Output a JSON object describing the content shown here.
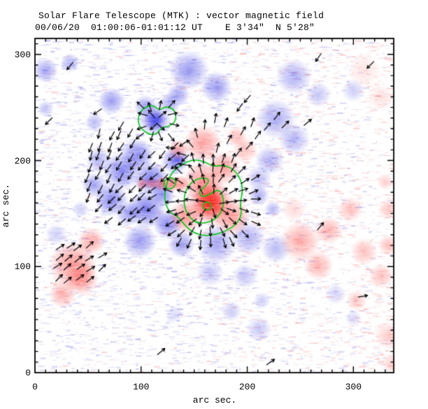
{
  "chart_data": {
    "type": "heatmap",
    "title": "Solar Flare Telescope (MTK) : vector magnetic field",
    "subtitle": "00/06/20  01:00:06-01:01:12 UT    E 3'34\"  N 5'28\"",
    "xlabel": "arc sec.",
    "ylabel": "arc sec.",
    "xlim": [
      0,
      338
    ],
    "ylim": [
      0,
      315
    ],
    "x_major_ticks": [
      0,
      100,
      200,
      300
    ],
    "y_major_ticks": [
      0,
      100,
      200,
      300
    ],
    "minor_tick_step": 10,
    "grid": false,
    "legend": "none",
    "colors": {
      "positive_flux": "#fa2d26",
      "negative_flux": "#3737e4",
      "contour": "#00c814",
      "noise_pink": "#f67878",
      "noise_blue": "#6e6ee4",
      "axis": "#000000",
      "background": "#ffffff"
    },
    "blobs": [
      [
        10,
        285,
        12,
        "n",
        0.45
      ],
      [
        33,
        292,
        9,
        "n",
        0.4
      ],
      [
        72,
        256,
        13,
        "n",
        0.5
      ],
      [
        56,
        236,
        9,
        "n",
        0.35
      ],
      [
        10,
        249,
        8,
        "n",
        0.3
      ],
      [
        145,
        285,
        19,
        "n",
        0.5
      ],
      [
        171,
        269,
        15,
        "n",
        0.5
      ],
      [
        135,
        262,
        11,
        "n",
        0.45
      ],
      [
        244,
        279,
        17,
        "n",
        0.4
      ],
      [
        267,
        262,
        12,
        "n",
        0.3
      ],
      [
        300,
        266,
        11,
        "n",
        0.25
      ],
      [
        227,
        239,
        19,
        "n",
        0.42
      ],
      [
        244,
        220,
        15,
        "n",
        0.38
      ],
      [
        221,
        200,
        14,
        "n",
        0.38
      ],
      [
        211,
        183,
        12,
        "n",
        0.33
      ],
      [
        113,
        238,
        10,
        "n",
        0.85
      ],
      [
        113,
        238,
        16,
        "n",
        0.5
      ],
      [
        104,
        251,
        11,
        "n",
        0.45
      ],
      [
        127,
        254,
        10,
        "n",
        0.45
      ],
      [
        82,
        190,
        18,
        "n",
        0.6
      ],
      [
        109,
        183,
        16,
        "n",
        0.65
      ],
      [
        72,
        163,
        16,
        "n",
        0.6
      ],
      [
        105,
        154,
        18,
        "n",
        0.65
      ],
      [
        132,
        200,
        13,
        "n",
        0.55
      ],
      [
        56,
        177,
        12,
        "n",
        0.45
      ],
      [
        125,
        140,
        14,
        "n",
        0.6
      ],
      [
        99,
        124,
        16,
        "n",
        0.5
      ],
      [
        138,
        121,
        13,
        "n",
        0.5
      ],
      [
        135,
        200,
        8,
        "n",
        0.5
      ],
      [
        96,
        205,
        16,
        "n",
        0.6
      ],
      [
        120,
        168,
        12,
        "n",
        0.55
      ],
      [
        88,
        150,
        12,
        "n",
        0.5
      ],
      [
        60,
        200,
        12,
        "n",
        0.4
      ],
      [
        171,
        121,
        19,
        "n",
        0.45
      ],
      [
        201,
        127,
        16,
        "n",
        0.4
      ],
      [
        227,
        117,
        14,
        "n",
        0.35
      ],
      [
        165,
        94,
        13,
        "n",
        0.3
      ],
      [
        198,
        91,
        12,
        "n",
        0.3
      ],
      [
        211,
        167,
        10,
        "n",
        0.4
      ],
      [
        224,
        154,
        8,
        "n",
        0.35
      ],
      [
        185,
        58,
        10,
        "n",
        0.25
      ],
      [
        214,
        68,
        8,
        "n",
        0.25
      ],
      [
        211,
        41,
        12,
        "n",
        0.28
      ],
      [
        132,
        55,
        8,
        "n",
        0.2
      ],
      [
        283,
        74,
        10,
        "n",
        0.22
      ],
      [
        300,
        51,
        8,
        "n",
        0.2
      ],
      [
        20,
        130,
        10,
        "n",
        0.25
      ],
      [
        43,
        154,
        8,
        "n",
        0.25
      ],
      [
        165,
        160,
        7,
        "p",
        0.95
      ],
      [
        165,
        160,
        12,
        "p",
        0.85
      ],
      [
        165,
        160,
        17,
        "p",
        0.7
      ],
      [
        165,
        161,
        23,
        "p",
        0.55
      ],
      [
        158,
        180,
        19,
        "p",
        0.5
      ],
      [
        142,
        147,
        16,
        "p",
        0.5
      ],
      [
        185,
        147,
        18,
        "p",
        0.48
      ],
      [
        178,
        193,
        16,
        "p",
        0.45
      ],
      [
        158,
        216,
        18,
        "p",
        0.45
      ],
      [
        135,
        210,
        10,
        "p",
        0.4
      ],
      [
        190,
        222,
        10,
        "p",
        0.33
      ],
      [
        198,
        210,
        12,
        "p",
        0.3
      ],
      [
        101,
        178,
        6,
        "p",
        0.45
      ],
      [
        110,
        178,
        6,
        "p",
        0.5
      ],
      [
        119,
        178,
        7,
        "p",
        0.55
      ],
      [
        128,
        178,
        8,
        "p",
        0.6
      ],
      [
        137,
        178,
        8,
        "p",
        0.55
      ],
      [
        36,
        101,
        23,
        "p",
        0.5
      ],
      [
        53,
        124,
        13,
        "p",
        0.42
      ],
      [
        26,
        74,
        13,
        "p",
        0.38
      ],
      [
        44,
        88,
        16,
        "p",
        0.45
      ],
      [
        250,
        124,
        19,
        "p",
        0.4
      ],
      [
        277,
        134,
        13,
        "p",
        0.36
      ],
      [
        267,
        101,
        14,
        "p",
        0.36
      ],
      [
        297,
        154,
        12,
        "p",
        0.3
      ],
      [
        310,
        114,
        13,
        "p",
        0.3
      ],
      [
        326,
        91,
        12,
        "p",
        0.3
      ],
      [
        303,
        68,
        10,
        "p",
        0.26
      ],
      [
        333,
        154,
        10,
        "p",
        0.26
      ],
      [
        330,
        180,
        8,
        "p",
        0.24
      ],
      [
        244,
        154,
        12,
        "p",
        0.18
      ],
      [
        333,
        120,
        10,
        "p",
        0.3
      ],
      [
        310,
        285,
        16,
        "p",
        0.13
      ],
      [
        326,
        259,
        13,
        "p",
        0.13
      ],
      [
        333,
        35,
        13,
        "p",
        0.25
      ],
      [
        336,
        9,
        10,
        "p",
        0.22
      ]
    ],
    "contours": [
      {
        "name": "negative-kernel-contour",
        "points": [
          [
            97,
            239
          ],
          [
            99,
            246
          ],
          [
            105,
            251
          ],
          [
            112,
            252
          ],
          [
            117,
            247
          ],
          [
            123,
            251
          ],
          [
            130,
            249
          ],
          [
            133,
            243
          ],
          [
            132,
            236
          ],
          [
            126,
            232
          ],
          [
            119,
            231
          ],
          [
            115,
            225
          ],
          [
            109,
            224
          ],
          [
            102,
            228
          ],
          [
            98,
            233
          ]
        ]
      },
      {
        "name": "positive-outer-contour",
        "points": [
          [
            122,
            167
          ],
          [
            124,
            179
          ],
          [
            130,
            190
          ],
          [
            139,
            197
          ],
          [
            150,
            201
          ],
          [
            160,
            199
          ],
          [
            168,
            194
          ],
          [
            178,
            196
          ],
          [
            188,
            191
          ],
          [
            194,
            182
          ],
          [
            196,
            171
          ],
          [
            193,
            160
          ],
          [
            195,
            149
          ],
          [
            190,
            140
          ],
          [
            181,
            134
          ],
          [
            170,
            130
          ],
          [
            159,
            129
          ],
          [
            149,
            132
          ],
          [
            141,
            139
          ],
          [
            135,
            147
          ],
          [
            127,
            151
          ],
          [
            123,
            159
          ]
        ]
      },
      {
        "name": "positive-inner-contour",
        "points": [
          [
            140,
            162
          ],
          [
            142,
            172
          ],
          [
            148,
            180
          ],
          [
            157,
            184
          ],
          [
            165,
            182
          ],
          [
            160,
            175
          ],
          [
            154,
            170
          ],
          [
            158,
            165
          ],
          [
            166,
            169
          ],
          [
            173,
            173
          ],
          [
            177,
            167
          ],
          [
            178,
            159
          ],
          [
            175,
            150
          ],
          [
            169,
            144
          ],
          [
            161,
            141
          ],
          [
            153,
            141
          ],
          [
            147,
            145
          ],
          [
            142,
            152
          ]
        ]
      },
      {
        "name": "positive-core-contour",
        "points": [
          [
            166,
            157
          ],
          [
            165,
            160
          ],
          [
            162,
            161
          ],
          [
            159,
            160
          ],
          [
            158,
            157
          ],
          [
            159,
            154
          ],
          [
            162,
            153
          ],
          [
            165,
            154
          ]
        ]
      },
      {
        "name": "finger-contour",
        "points": [
          [
            133,
            178
          ],
          [
            132,
            182
          ],
          [
            128,
            184
          ],
          [
            124,
            183
          ],
          [
            121,
            179
          ],
          [
            122,
            175
          ],
          [
            126,
            173
          ],
          [
            130,
            174
          ]
        ]
      }
    ],
    "vector_field": {
      "arrow_len": 9,
      "patches": [
        {
          "mode": "radial",
          "cx": 165,
          "cy": 160,
          "rmin": 5,
          "rmax": 48,
          "spacing": 10
        },
        {
          "mode": "radial",
          "cx": 115,
          "cy": 237,
          "rmin": 4,
          "rmax": 25,
          "spacing": 10
        },
        {
          "mode": "converge",
          "cx": 96,
          "cy": 186,
          "rx": 55,
          "ry": 52,
          "tx": 20,
          "ty": 100,
          "spacing": 10,
          "skip": [
            [
              165,
              160,
              48
            ],
            [
              115,
              237,
              27
            ],
            [
              38,
              102,
              28
            ]
          ]
        },
        {
          "mode": "uniform",
          "cx": 38,
          "cy": 102,
          "rx": 26,
          "ry": 23,
          "angle": 38,
          "spacing": 10
        }
      ],
      "singles": [
        [
          33,
          289,
          230
        ],
        [
          13,
          237,
          225
        ],
        [
          59,
          246,
          215
        ],
        [
          316,
          290,
          225
        ],
        [
          267,
          297,
          235
        ],
        [
          257,
          236,
          40
        ],
        [
          269,
          138,
          50
        ],
        [
          309,
          72,
          10
        ],
        [
          119,
          20,
          40
        ],
        [
          222,
          10,
          35
        ],
        [
          138,
          206,
          165
        ],
        [
          128,
          212,
          178
        ],
        [
          146,
          216,
          130
        ],
        [
          152,
          226,
          105
        ],
        [
          140,
          196,
          172
        ],
        [
          160,
          234,
          85
        ],
        [
          170,
          240,
          80
        ],
        [
          180,
          236,
          70
        ],
        [
          172,
          212,
          75
        ],
        [
          183,
          220,
          62
        ],
        [
          192,
          208,
          55
        ],
        [
          202,
          214,
          48
        ],
        [
          210,
          224,
          55
        ],
        [
          219,
          232,
          50
        ],
        [
          228,
          242,
          52
        ],
        [
          236,
          234,
          45
        ],
        [
          205,
          236,
          70
        ],
        [
          196,
          228,
          60
        ],
        [
          193,
          250,
          235
        ],
        [
          200,
          258,
          230
        ]
      ]
    },
    "noise": {
      "seed": 13,
      "color_streaks": 5200,
      "white_streaks": 2800
    }
  }
}
